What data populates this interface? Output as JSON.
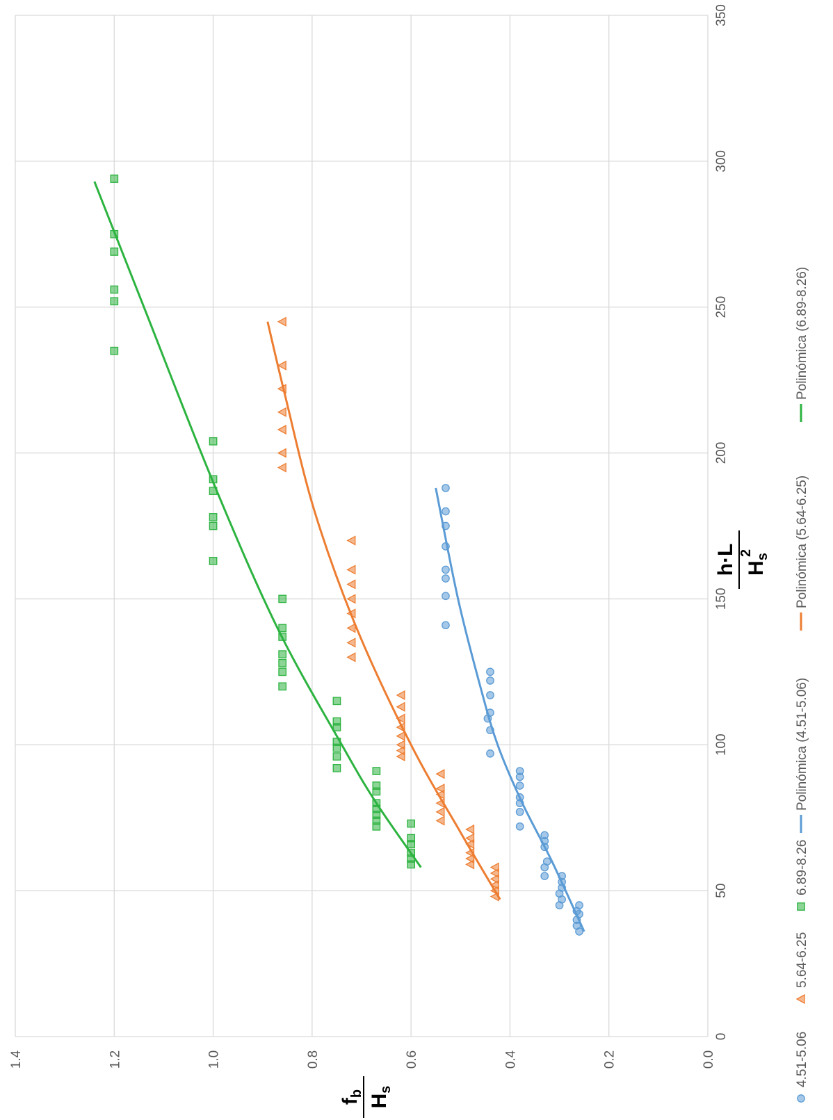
{
  "chart_data": {
    "type": "scatter",
    "orientation": "rotated-90-ccw",
    "title": "",
    "xlabel": {
      "main": "h·L",
      "den_base": "H",
      "den_sub": "s",
      "den_sup": "2"
    },
    "ylabel": {
      "num_base": "f",
      "num_sub": "b",
      "den_base": "H",
      "den_sub": "s"
    },
    "xlim": [
      0,
      350
    ],
    "ylim": [
      0.0,
      1.4
    ],
    "x_ticks": [
      "0",
      "50",
      "100",
      "150",
      "200",
      "250",
      "300",
      "350"
    ],
    "y_ticks": [
      "0.0",
      "0.2",
      "0.4",
      "0.6",
      "0.8",
      "1.0",
      "1.2",
      "1.4"
    ],
    "grid": true,
    "legend_position": "bottom",
    "series": [
      {
        "name": "4.51-5.06",
        "marker": "circle",
        "color": "#5B9BD5",
        "points": [
          [
            36,
            0.26
          ],
          [
            38,
            0.265
          ],
          [
            40,
            0.265
          ],
          [
            42,
            0.26
          ],
          [
            43,
            0.265
          ],
          [
            45,
            0.26
          ],
          [
            45,
            0.3
          ],
          [
            47,
            0.295
          ],
          [
            49,
            0.3
          ],
          [
            51,
            0.295
          ],
          [
            53,
            0.295
          ],
          [
            55,
            0.295
          ],
          [
            55,
            0.33
          ],
          [
            58,
            0.33
          ],
          [
            60,
            0.325
          ],
          [
            65,
            0.33
          ],
          [
            67,
            0.33
          ],
          [
            69,
            0.33
          ],
          [
            72,
            0.38
          ],
          [
            77,
            0.38
          ],
          [
            80,
            0.38
          ],
          [
            82,
            0.38
          ],
          [
            86,
            0.38
          ],
          [
            89,
            0.38
          ],
          [
            91,
            0.38
          ],
          [
            97,
            0.44
          ],
          [
            105,
            0.44
          ],
          [
            109,
            0.445
          ],
          [
            111,
            0.44
          ],
          [
            117,
            0.44
          ],
          [
            122,
            0.44
          ],
          [
            125,
            0.44
          ],
          [
            141,
            0.53
          ],
          [
            151,
            0.53
          ],
          [
            157,
            0.53
          ],
          [
            160,
            0.53
          ],
          [
            168,
            0.53
          ],
          [
            175,
            0.53
          ],
          [
            180,
            0.53
          ],
          [
            188,
            0.53
          ]
        ]
      },
      {
        "name": "5.64-6.25",
        "marker": "triangle",
        "color": "#ED7D31",
        "points": [
          [
            48,
            0.43
          ],
          [
            50,
            0.43
          ],
          [
            52,
            0.43
          ],
          [
            54,
            0.43
          ],
          [
            56,
            0.43
          ],
          [
            58,
            0.43
          ],
          [
            59,
            0.48
          ],
          [
            61,
            0.48
          ],
          [
            63,
            0.48
          ],
          [
            66,
            0.48
          ],
          [
            68,
            0.48
          ],
          [
            71,
            0.48
          ],
          [
            74,
            0.54
          ],
          [
            77,
            0.54
          ],
          [
            80,
            0.54
          ],
          [
            83,
            0.54
          ],
          [
            85,
            0.54
          ],
          [
            90,
            0.54
          ],
          [
            96,
            0.62
          ],
          [
            98,
            0.62
          ],
          [
            100,
            0.62
          ],
          [
            103,
            0.62
          ],
          [
            106,
            0.62
          ],
          [
            109,
            0.62
          ],
          [
            113,
            0.62
          ],
          [
            117,
            0.62
          ],
          [
            130,
            0.72
          ],
          [
            135,
            0.72
          ],
          [
            140,
            0.72
          ],
          [
            145,
            0.72
          ],
          [
            150,
            0.72
          ],
          [
            155,
            0.72
          ],
          [
            160,
            0.72
          ],
          [
            170,
            0.72
          ],
          [
            195,
            0.86
          ],
          [
            200,
            0.86
          ],
          [
            208,
            0.86
          ],
          [
            214,
            0.86
          ],
          [
            222,
            0.86
          ],
          [
            230,
            0.86
          ],
          [
            245,
            0.86
          ]
        ]
      },
      {
        "name": "6.89-8.26",
        "marker": "square",
        "color": "#2DB340",
        "points": [
          [
            59,
            0.6
          ],
          [
            61,
            0.6
          ],
          [
            63,
            0.6
          ],
          [
            66,
            0.6
          ],
          [
            68,
            0.6
          ],
          [
            73,
            0.6
          ],
          [
            72,
            0.67
          ],
          [
            74,
            0.67
          ],
          [
            76,
            0.67
          ],
          [
            78,
            0.67
          ],
          [
            80,
            0.67
          ],
          [
            84,
            0.67
          ],
          [
            86,
            0.67
          ],
          [
            91,
            0.67
          ],
          [
            92,
            0.75
          ],
          [
            96,
            0.75
          ],
          [
            99,
            0.75
          ],
          [
            101,
            0.75
          ],
          [
            106,
            0.75
          ],
          [
            108,
            0.75
          ],
          [
            115,
            0.75
          ],
          [
            120,
            0.86
          ],
          [
            125,
            0.86
          ],
          [
            128,
            0.86
          ],
          [
            131,
            0.86
          ],
          [
            137,
            0.86
          ],
          [
            140,
            0.86
          ],
          [
            150,
            0.86
          ],
          [
            163,
            1.0
          ],
          [
            175,
            1.0
          ],
          [
            178,
            1.0
          ],
          [
            187,
            1.0
          ],
          [
            191,
            1.0
          ],
          [
            204,
            1.0
          ],
          [
            235,
            1.2
          ],
          [
            252,
            1.2
          ],
          [
            256,
            1.2
          ],
          [
            269,
            1.2
          ],
          [
            275,
            1.2
          ],
          [
            294,
            1.2
          ]
        ]
      }
    ],
    "trendlines": [
      {
        "name": "Polinómica (4.51-5.06)",
        "color": "#5B9BD5",
        "x_range": [
          36,
          188
        ],
        "anchors": [
          [
            36,
            0.25
          ],
          [
            60,
            0.315
          ],
          [
            80,
            0.375
          ],
          [
            100,
            0.425
          ],
          [
            120,
            0.46
          ],
          [
            150,
            0.505
          ],
          [
            188,
            0.55
          ]
        ]
      },
      {
        "name": "Polinómica (5.64-6.25)",
        "color": "#ED7D31",
        "x_range": [
          47,
          245
        ],
        "anchors": [
          [
            47,
            0.42
          ],
          [
            70,
            0.5
          ],
          [
            100,
            0.6
          ],
          [
            140,
            0.71
          ],
          [
            180,
            0.795
          ],
          [
            220,
            0.855
          ],
          [
            245,
            0.89
          ]
        ]
      },
      {
        "name": "Polinómica (6.89-8.26)",
        "color": "#2DB340",
        "x_range": [
          58,
          293
        ],
        "anchors": [
          [
            58,
            0.58
          ],
          [
            80,
            0.67
          ],
          [
            100,
            0.74
          ],
          [
            140,
            0.87
          ],
          [
            190,
            1.0
          ],
          [
            250,
            1.14
          ],
          [
            293,
            1.24
          ]
        ]
      }
    ]
  }
}
